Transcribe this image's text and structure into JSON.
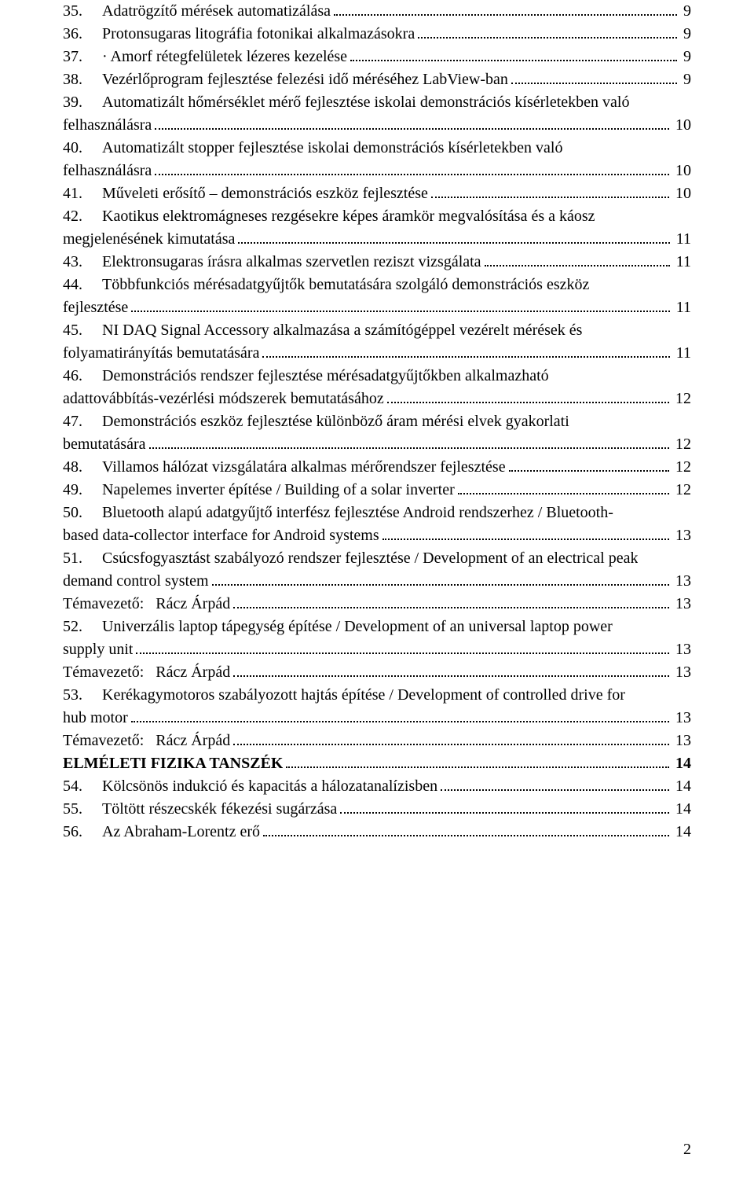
{
  "font": {
    "family": "Times New Roman",
    "size_pt": 15,
    "color": "#000000"
  },
  "background_color": "#ffffff",
  "page_number": "2",
  "entries": [
    {
      "num": "35.",
      "lines": [
        "Adatrögzítő mérések automatizálása"
      ],
      "page": "9"
    },
    {
      "num": "36.",
      "lines": [
        "Protonsugaras litográfia fotonikai alkalmazásokra"
      ],
      "page": "9"
    },
    {
      "num": "37.",
      "lines": [
        "· Amorf rétegfelületek lézeres kezelése"
      ],
      "page": "9"
    },
    {
      "num": "38.",
      "lines": [
        "Vezérlőprogram fejlesztése felezési idő méréséhez LabView-ban"
      ],
      "page": "9"
    },
    {
      "num": "39.",
      "lines": [
        "Automatizált hőmérséklet mérő fejlesztése iskolai demonstrációs kísérletekben való",
        "felhasználásra"
      ],
      "page": "10"
    },
    {
      "num": "40.",
      "lines": [
        "Automatizált stopper fejlesztése iskolai demonstrációs kísérletekben való",
        "felhasználásra"
      ],
      "page": "10"
    },
    {
      "num": "41.",
      "lines": [
        "Műveleti erősítő – demonstrációs eszköz fejlesztése"
      ],
      "page": "10"
    },
    {
      "num": "42.",
      "lines": [
        "Kaotikus elektromágneses rezgésekre képes áramkör megvalósítása és a káosz",
        "megjelenésének kimutatása"
      ],
      "page": "11"
    },
    {
      "num": "43.",
      "lines": [
        "Elektronsugaras írásra alkalmas szervetlen reziszt vizsgálata"
      ],
      "page": "11"
    },
    {
      "num": "44.",
      "lines": [
        "Többfunkciós mérésadatgyűjtők bemutatására szolgáló demonstrációs eszköz",
        "fejlesztése"
      ],
      "page": "11"
    },
    {
      "num": "45.",
      "lines": [
        "NI DAQ Signal Accessory alkalmazása a számítógéppel vezérelt mérések és",
        "folyamatirányítás bemutatására"
      ],
      "page": "11"
    },
    {
      "num": "46.",
      "lines": [
        "Demonstrációs rendszer fejlesztése mérésadatgyűjtőkben alkalmazható",
        "adattovábbítás-vezérlési módszerek bemutatásához"
      ],
      "page": "12"
    },
    {
      "num": "47.",
      "lines": [
        "Demonstrációs eszköz fejlesztése különböző áram mérési elvek gyakorlati",
        "bemutatására"
      ],
      "page": "12"
    },
    {
      "num": "48.",
      "lines": [
        "Villamos hálózat vizsgálatára alkalmas mérőrendszer fejlesztése"
      ],
      "page": "12"
    },
    {
      "num": "49.",
      "lines": [
        "Napelemes inverter építése / Building of a solar inverter"
      ],
      "page": "12"
    },
    {
      "num": "50.",
      "lines": [
        "Bluetooth alapú adatgyűjtő interfész fejlesztése Android rendszerhez / Bluetooth-",
        "based data-collector interface for Android systems"
      ],
      "page": "13"
    },
    {
      "num": "51.",
      "lines": [
        "Csúcsfogyasztást szabályozó rendszer fejlesztése / Development of an electrical peak",
        "demand control system"
      ],
      "page": "13"
    },
    {
      "num": "",
      "lines": [
        "Témavezető:   Rácz Árpád"
      ],
      "page": "13"
    },
    {
      "num": "52.",
      "lines": [
        "Univerzális laptop tápegység építése / Development of an universal laptop power",
        "supply unit"
      ],
      "page": "13"
    },
    {
      "num": "",
      "lines": [
        "Témavezető:   Rácz Árpád"
      ],
      "page": "13"
    },
    {
      "num": "53.",
      "lines": [
        "Kerékagymotoros szabályozott hajtás építése / Development of controlled drive for",
        "hub motor"
      ],
      "page": "13"
    },
    {
      "num": "",
      "lines": [
        "Témavezető:   Rácz Árpád"
      ],
      "page": "13"
    },
    {
      "num": "",
      "bold": true,
      "lines": [
        "ELMÉLETI FIZIKA TANSZÉK"
      ],
      "page": "14"
    },
    {
      "num": "54.",
      "lines": [
        "Kölcsönös indukció és kapacitás a hálozatanalízisben"
      ],
      "page": "14"
    },
    {
      "num": "55.",
      "lines": [
        "Töltött részecskék fékezési sugárzása"
      ],
      "page": "14"
    },
    {
      "num": "56.",
      "lines": [
        "Az Abraham-Lorentz erő"
      ],
      "page": "14"
    }
  ]
}
